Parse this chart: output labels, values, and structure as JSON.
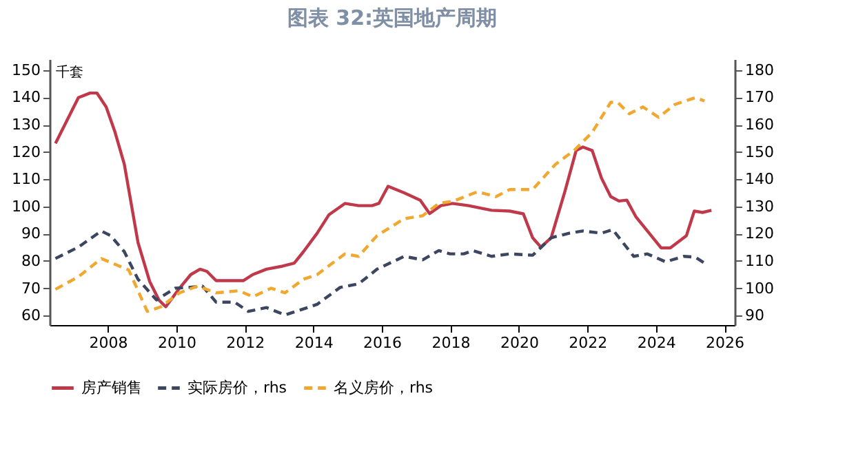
{
  "chart_data": {
    "type": "line",
    "title": "图表 32:英国地产周期",
    "ylabel": "千套",
    "xlim": [
      2006.3,
      2026.3
    ],
    "xticks": [
      2008,
      2010,
      2012,
      2014,
      2016,
      2018,
      2020,
      2022,
      2024,
      2026
    ],
    "ylim": [
      56.5,
      154
    ],
    "yticks": [
      60,
      70,
      80,
      90,
      100,
      110,
      120,
      130,
      140,
      150
    ],
    "y2lim": [
      86.5,
      184
    ],
    "y2ticks": [
      90,
      100,
      110,
      120,
      130,
      140,
      150,
      160,
      170,
      180
    ],
    "grid": false,
    "legend": "bottom",
    "series": [
      {
        "name": "房产销售",
        "color": "#c0394b",
        "line_style": "solid",
        "x": [
          2006.47,
          2007.14,
          2007.48,
          2007.68,
          2007.95,
          2008.21,
          2008.48,
          2008.88,
          2009.22,
          2009.49,
          2009.69,
          2010.09,
          2010.42,
          2010.69,
          2010.89,
          2011.16,
          2011.56,
          2011.96,
          2012.23,
          2012.63,
          2013.1,
          2013.44,
          2013.71,
          2014.11,
          2014.45,
          2014.92,
          2015.32,
          2015.71,
          2015.91,
          2016.18,
          2016.65,
          2017.12,
          2017.39,
          2017.72,
          2018.06,
          2018.53,
          2019.2,
          2019.73,
          2020.13,
          2020.4,
          2020.64,
          2020.94,
          2021.34,
          2021.67,
          2021.87,
          2022.14,
          2022.41,
          2022.68,
          2022.92,
          2023.15,
          2023.42,
          2024.15,
          2024.42,
          2024.89,
          2025.12,
          2025.36,
          2025.62
        ],
        "values": [
          123.1,
          139.9,
          141.6,
          141.6,
          136.5,
          127.2,
          115.5,
          86.8,
          72.5,
          65.7,
          63.2,
          70.0,
          75.0,
          77.0,
          76.2,
          72.8,
          72.8,
          72.8,
          75.0,
          77.0,
          78.1,
          79.2,
          83.4,
          90.2,
          96.9,
          101.1,
          100.3,
          100.3,
          101.1,
          107.4,
          105.0,
          102.3,
          97.4,
          100.3,
          101.1,
          100.3,
          98.6,
          98.3,
          97.3,
          88.5,
          85.1,
          88.5,
          105.4,
          120.5,
          121.8,
          120.5,
          110.4,
          103.6,
          102.0,
          102.3,
          96.1,
          84.8,
          84.8,
          89.3,
          98.3,
          97.8,
          98.6
        ]
      },
      {
        "name": "实际房价，rhs",
        "color": "#3d4660",
        "line_style": "dashed",
        "axis": "y2",
        "x": [
          2006.47,
          2007.14,
          2007.81,
          2008.08,
          2008.48,
          2008.88,
          2009.42,
          2009.96,
          2010.36,
          2010.76,
          2011.16,
          2011.7,
          2012.1,
          2012.63,
          2013.17,
          2013.71,
          2014.11,
          2014.78,
          2015.32,
          2015.86,
          2016.65,
          2017.19,
          2017.66,
          2017.99,
          2018.39,
          2018.66,
          2019.2,
          2019.73,
          2020.4,
          2020.94,
          2021.47,
          2021.87,
          2022.41,
          2022.74,
          2023.35,
          2023.75,
          2024.28,
          2024.81,
          2025.15,
          2025.42
        ],
        "values": [
          110.9,
          115.1,
          121.0,
          119.3,
          113.4,
          103.3,
          95.7,
          100.0,
          100.3,
          100.8,
          94.9,
          94.9,
          91.5,
          92.9,
          90.2,
          92.4,
          94.1,
          100.3,
          101.6,
          107.0,
          111.7,
          110.4,
          113.8,
          112.6,
          112.6,
          113.8,
          111.7,
          112.6,
          112.1,
          118.5,
          120.2,
          121.0,
          120.2,
          121.5,
          111.7,
          112.6,
          109.7,
          111.7,
          111.4,
          109.2
        ]
      },
      {
        "name": "名义房价，rhs",
        "color": "#f0a830",
        "line_style": "dashed",
        "axis": "y2",
        "x": [
          2006.47,
          2007.14,
          2007.81,
          2008.28,
          2008.61,
          2009.15,
          2009.55,
          2010.09,
          2010.62,
          2011.16,
          2011.83,
          2012.23,
          2012.77,
          2013.17,
          2013.71,
          2014.11,
          2014.92,
          2015.32,
          2015.86,
          2016.65,
          2017.19,
          2017.66,
          2018.1,
          2018.79,
          2019.33,
          2019.73,
          2020.4,
          2021.07,
          2021.61,
          2022.14,
          2022.68,
          2022.88,
          2023.22,
          2023.62,
          2024.08,
          2024.55,
          2025.15,
          2025.42
        ],
        "values": [
          99.6,
          104.2,
          110.9,
          108.4,
          106.7,
          91.5,
          93.2,
          98.3,
          100.8,
          98.3,
          99.1,
          96.9,
          100.0,
          98.3,
          103.3,
          105.0,
          112.6,
          111.7,
          119.3,
          125.5,
          126.6,
          131.1,
          132.0,
          135.4,
          133.6,
          136.2,
          136.2,
          145.5,
          150.5,
          157.2,
          168.2,
          168.2,
          164.0,
          166.5,
          162.7,
          167.4,
          169.9,
          168.7
        ]
      }
    ]
  }
}
